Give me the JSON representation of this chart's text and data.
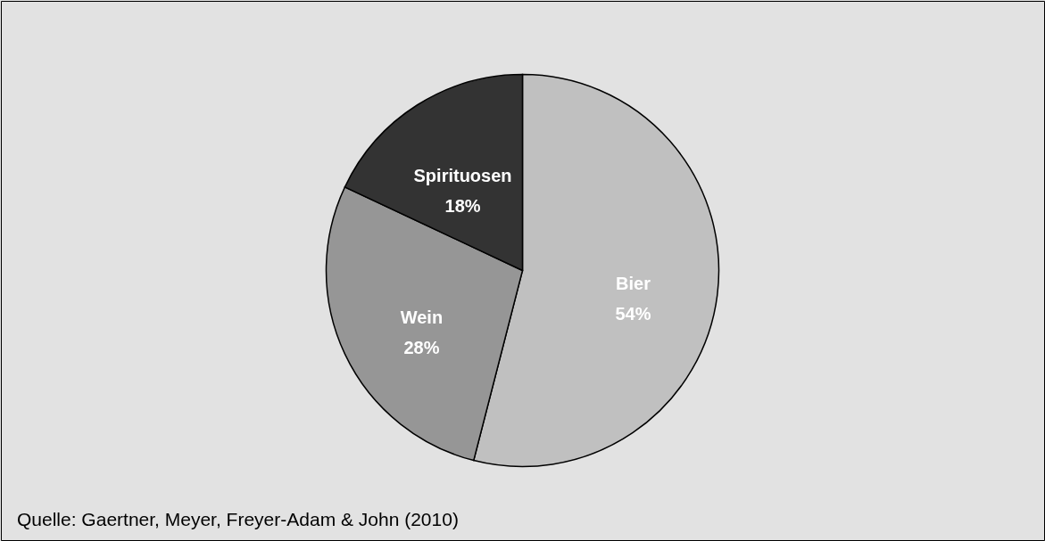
{
  "chart_data": {
    "type": "pie",
    "categories": [
      "Bier",
      "Wein",
      "Spirituosen"
    ],
    "values": [
      54,
      28,
      18
    ],
    "colors": [
      "#c0c0c0",
      "#969696",
      "#333333"
    ],
    "value_labels": [
      "54%",
      "28%",
      "18%"
    ],
    "annotations": [
      "Quelle: Gaertner, Meyer, Freyer-Adam & John (2010)"
    ]
  }
}
